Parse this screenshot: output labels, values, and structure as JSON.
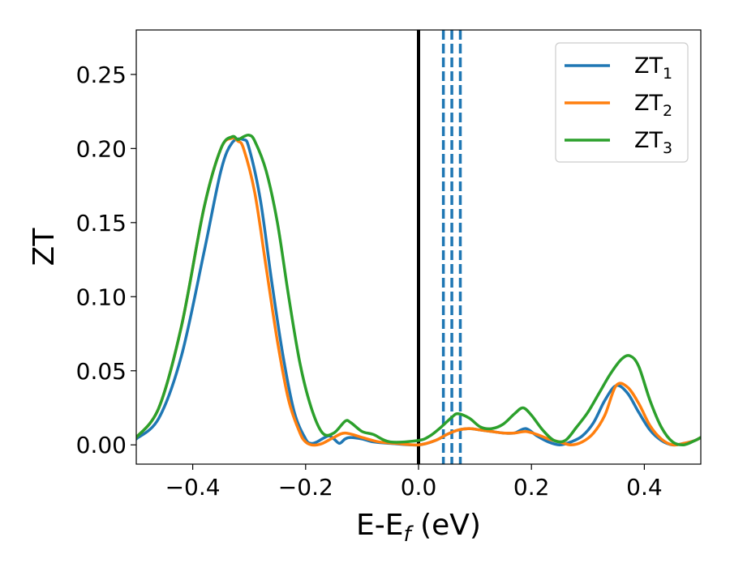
{
  "chart_data": {
    "type": "line",
    "xlabel_main": "E-E",
    "xlabel_sub": "f",
    "xlabel_unit": " (eV)",
    "ylabel": "ZT",
    "xlim": [
      -0.5,
      0.5
    ],
    "ylim": [
      -0.013,
      0.28
    ],
    "grid": false,
    "legend_position": "top-right",
    "x_ticks": [
      -0.4,
      -0.2,
      0.0,
      0.2,
      0.4
    ],
    "x_tick_labels": [
      "−0.4",
      "−0.2",
      "0.0",
      "0.2",
      "0.4"
    ],
    "y_ticks": [
      0.0,
      0.05,
      0.1,
      0.15,
      0.2,
      0.25
    ],
    "y_tick_labels": [
      "0.00",
      "0.05",
      "0.10",
      "0.15",
      "0.20",
      "0.25"
    ],
    "vertical_lines": [
      {
        "x": 0.0,
        "style": "solid",
        "color": "#000000"
      },
      {
        "x": 0.044,
        "style": "dashed",
        "color": "#1f77b4"
      },
      {
        "x": 0.059,
        "style": "dashed",
        "color": "#1f77b4"
      },
      {
        "x": 0.074,
        "style": "dashed",
        "color": "#1f77b4"
      }
    ],
    "series": [
      {
        "name": "ZT",
        "name_sub": "1",
        "color": "#1f77b4",
        "x": [
          -0.5,
          -0.46,
          -0.42,
          -0.38,
          -0.35,
          -0.33,
          -0.31,
          -0.3,
          -0.28,
          -0.26,
          -0.24,
          -0.22,
          -0.2,
          -0.19,
          -0.18,
          -0.16,
          -0.15,
          -0.14,
          -0.13,
          -0.12,
          -0.1,
          -0.08,
          -0.05,
          0.0,
          0.03,
          0.05,
          0.07,
          0.09,
          0.11,
          0.13,
          0.15,
          0.17,
          0.19,
          0.21,
          0.23,
          0.25,
          0.27,
          0.29,
          0.31,
          0.33,
          0.35,
          0.37,
          0.39,
          0.41,
          0.43,
          0.45,
          0.47,
          0.49,
          0.5
        ],
        "y": [
          0.004,
          0.018,
          0.06,
          0.13,
          0.185,
          0.204,
          0.206,
          0.2,
          0.165,
          0.11,
          0.06,
          0.022,
          0.004,
          0.001,
          0.002,
          0.006,
          0.004,
          0.001,
          0.004,
          0.005,
          0.004,
          0.002,
          0.001,
          0.0,
          0.003,
          0.007,
          0.01,
          0.011,
          0.01,
          0.009,
          0.008,
          0.008,
          0.011,
          0.006,
          0.002,
          0.0,
          0.002,
          0.006,
          0.015,
          0.03,
          0.04,
          0.035,
          0.022,
          0.01,
          0.003,
          0.0,
          0.001,
          0.003,
          0.005
        ]
      },
      {
        "name": "ZT",
        "name_sub": "2",
        "color": "#ff7f0e",
        "x": [
          -0.5,
          -0.46,
          -0.42,
          -0.38,
          -0.35,
          -0.33,
          -0.32,
          -0.31,
          -0.29,
          -0.27,
          -0.25,
          -0.23,
          -0.21,
          -0.2,
          -0.19,
          -0.18,
          -0.17,
          -0.15,
          -0.13,
          -0.1,
          -0.07,
          -0.04,
          0.0,
          0.03,
          0.05,
          0.07,
          0.09,
          0.11,
          0.13,
          0.15,
          0.17,
          0.19,
          0.21,
          0.23,
          0.25,
          0.27,
          0.29,
          0.31,
          0.33,
          0.35,
          0.37,
          0.39,
          0.41,
          0.43,
          0.45,
          0.47,
          0.49,
          0.5
        ],
        "y": [
          0.005,
          0.025,
          0.08,
          0.16,
          0.2,
          0.207,
          0.205,
          0.2,
          0.17,
          0.12,
          0.07,
          0.03,
          0.008,
          0.002,
          0.0,
          0.0,
          0.001,
          0.005,
          0.008,
          0.005,
          0.002,
          0.001,
          0.0,
          0.003,
          0.007,
          0.01,
          0.011,
          0.01,
          0.009,
          0.008,
          0.008,
          0.009,
          0.007,
          0.004,
          0.002,
          0.0,
          0.002,
          0.008,
          0.02,
          0.04,
          0.039,
          0.028,
          0.013,
          0.004,
          0.0,
          0.001,
          0.003,
          0.005
        ]
      },
      {
        "name": "ZT",
        "name_sub": "3",
        "color": "#2ca02c",
        "x": [
          -0.5,
          -0.46,
          -0.42,
          -0.38,
          -0.35,
          -0.33,
          -0.32,
          -0.31,
          -0.3,
          -0.29,
          -0.27,
          -0.25,
          -0.23,
          -0.21,
          -0.19,
          -0.17,
          -0.15,
          -0.13,
          -0.12,
          -0.1,
          -0.08,
          -0.05,
          0.0,
          0.02,
          0.04,
          0.06,
          0.07,
          0.09,
          0.11,
          0.13,
          0.15,
          0.17,
          0.185,
          0.2,
          0.22,
          0.24,
          0.26,
          0.28,
          0.3,
          0.32,
          0.34,
          0.36,
          0.375,
          0.39,
          0.41,
          0.43,
          0.45,
          0.47,
          0.49,
          0.5
        ],
        "y": [
          0.005,
          0.025,
          0.08,
          0.16,
          0.2,
          0.208,
          0.206,
          0.208,
          0.209,
          0.205,
          0.185,
          0.15,
          0.1,
          0.055,
          0.025,
          0.008,
          0.008,
          0.016,
          0.015,
          0.009,
          0.007,
          0.002,
          0.003,
          0.006,
          0.012,
          0.019,
          0.021,
          0.018,
          0.012,
          0.011,
          0.014,
          0.021,
          0.025,
          0.02,
          0.01,
          0.003,
          0.003,
          0.012,
          0.022,
          0.035,
          0.048,
          0.058,
          0.06,
          0.053,
          0.03,
          0.012,
          0.002,
          0.0,
          0.003,
          0.005
        ]
      }
    ]
  }
}
